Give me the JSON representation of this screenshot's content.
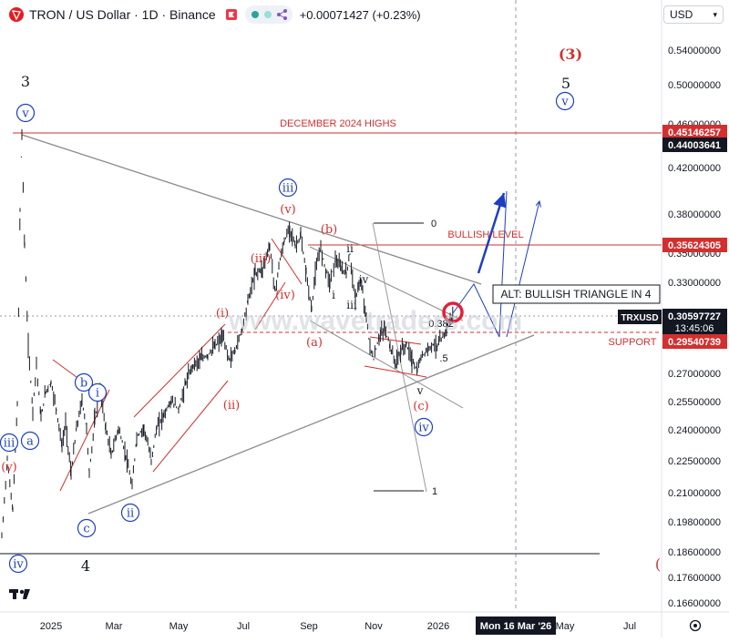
{
  "header": {
    "symbol_title": "TRON / US Dollar · 1D · Binance",
    "change": "+0.00071427 (+0.23%)"
  },
  "currency": "USD",
  "colors": {
    "red": "#d32f2f",
    "blue": "#1e3fbf",
    "gray": "#888888",
    "dark": "#131722"
  },
  "chart_data": {
    "type": "line",
    "title": "TRON / US Dollar · 1D · Binance",
    "x_ticks": [
      "2025",
      "Mar",
      "May",
      "Jul",
      "Sep",
      "Nov",
      "2026",
      "May",
      "Jul"
    ],
    "crosshair_date": "Mon 16 Mar '26",
    "y_ticks": [
      "0.54000000",
      "0.50000000",
      "0.46000000",
      "0.42000000",
      "0.38000000",
      "0.35000000",
      "0.33000000",
      "0.27000000",
      "0.25500000",
      "0.24000000",
      "0.22500000",
      "0.21000000",
      "0.19800000",
      "0.18600000",
      "0.17600000",
      "0.16600000"
    ],
    "price_labels": [
      {
        "value": "0.45146257",
        "kind": "red"
      },
      {
        "value": "0.44003641",
        "kind": "dark"
      },
      {
        "value": "0.35624305",
        "kind": "red"
      },
      {
        "value": "TRXUSD",
        "kind": "dark"
      },
      {
        "value": "0.30597727",
        "kind": "dark"
      },
      {
        "value": "13:45:06",
        "kind": "dark"
      },
      {
        "value": "0.29540739",
        "kind": "red"
      }
    ],
    "levels": [
      {
        "name": "DECEMBER 2024 HIGHS",
        "value": 0.45146257
      },
      {
        "name": "BULLISH LEVEL",
        "value": 0.35624305
      },
      {
        "name": "SUPPORT",
        "value": 0.29540739
      }
    ],
    "current_price": 0.30597727,
    "alt_label": "ALT: BULLISH TRIANGLE IN 4",
    "watermark": "www.wavetraders.com",
    "fib_labels": [
      "0",
      "1",
      "0.382",
      ".5"
    ],
    "wave_labels": [
      "3",
      "4",
      "5",
      "(3)",
      "(",
      "v",
      "iv",
      "iii",
      "v",
      "iv",
      "iii",
      "(v)",
      "(iii)",
      "(iv)",
      "(i)",
      "(ii)",
      "(a)",
      "(b)",
      "(c)",
      "(v)",
      "a",
      "b",
      "c",
      "i",
      "ii",
      "i",
      "ii",
      "iii",
      "iv",
      "v",
      "ii",
      "iii",
      "1"
    ]
  }
}
